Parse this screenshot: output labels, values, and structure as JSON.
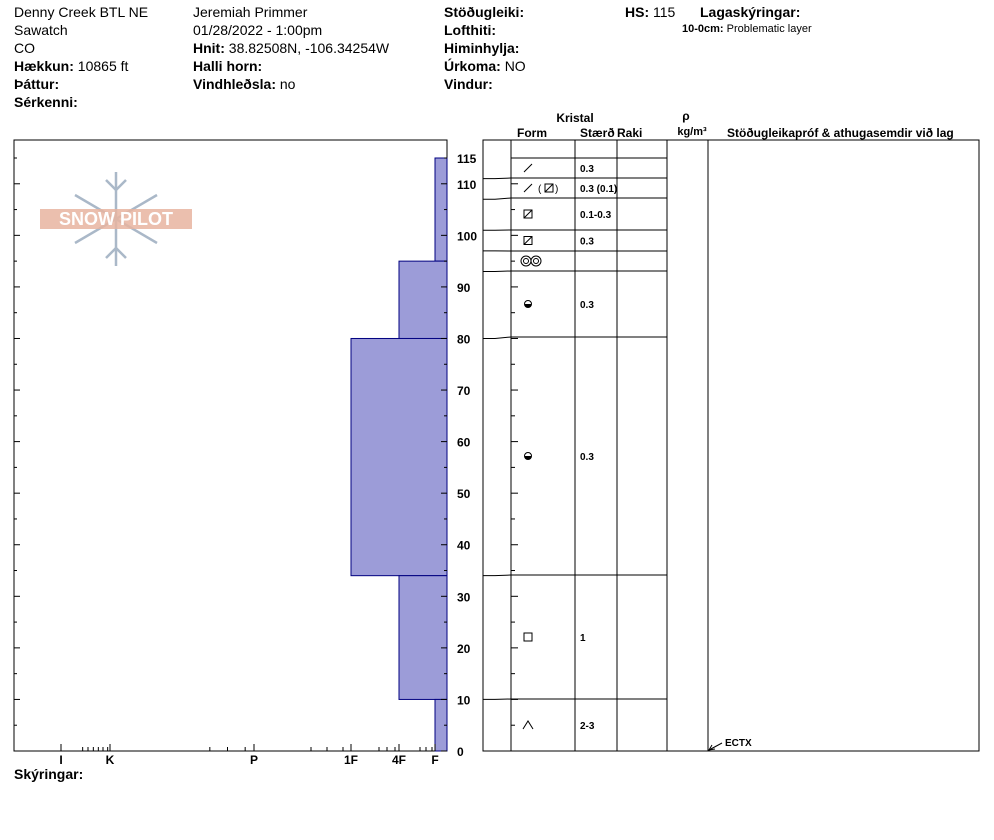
{
  "header": {
    "location": "Denny Creek BTL NE",
    "range": "Sawatch",
    "state": "CO",
    "elevation_label": "Hækkun:",
    "elevation_value": "10865 ft",
    "aspect_label": "Þáttur:",
    "specifics_label": "Sérkenni:",
    "observer": "Jeremiah Primmer",
    "datetime": "01/28/2022 - 1:00pm",
    "coords_label": "Hnit:",
    "coords_value": "38.82508N, -106.34254W",
    "slope_label": "Halli horn:",
    "wind_loading_label": "Vindhleðsla:",
    "wind_loading_value": "no",
    "stability_label": "Stöðugleiki:",
    "air_temp_label": "Lofthiti:",
    "sky_label": "Himinhylja:",
    "precip_label": "Úrkoma:",
    "precip_value": "NO",
    "wind_label": "Vindur:",
    "hs_label": "HS:",
    "hs_value": "115",
    "layer_notes_label": "Lagaskýringar:",
    "layer_note_depth": "10-0cm:",
    "layer_note_text": "Problematic layer"
  },
  "footer": {
    "notes_label": "Skýringar:"
  },
  "logo": {
    "text": "SNOW PILOT"
  },
  "columns": {
    "crystal": "Kristal",
    "form": "Form",
    "size": "Stærð",
    "moisture": "Raki",
    "density_symbol": "ρ",
    "density_unit": "kg/m³",
    "tests": "Stöðugleikapróf & athugasemdir við lag"
  },
  "colors": {
    "hardness_fill": "#9c9cd8",
    "hardness_stroke": "#000080",
    "logo": "#e8b4a0"
  },
  "chart_data": {
    "type": "bar",
    "orientation": "horizontal",
    "y_axis": {
      "label": "",
      "range": [
        0,
        115
      ],
      "ticks": [
        0,
        10,
        20,
        30,
        40,
        50,
        60,
        70,
        80,
        90,
        100,
        110,
        115
      ]
    },
    "x_axis": {
      "categories": [
        "I",
        "K",
        "P",
        "1F",
        "4F",
        "F"
      ],
      "reversed": true
    },
    "layers": [
      {
        "top": 115,
        "bottom": 95,
        "hardness": "F"
      },
      {
        "top": 95,
        "bottom": 80,
        "hardness": "4F"
      },
      {
        "top": 80,
        "bottom": 34,
        "hardness": "1F"
      },
      {
        "top": 34,
        "bottom": 10,
        "hardness": "4F"
      },
      {
        "top": 10,
        "bottom": 0,
        "hardness": "F"
      }
    ],
    "crystal_layers": [
      {
        "top": 115,
        "bottom": 111,
        "form": "decomposing",
        "size": "0.3"
      },
      {
        "top": 111,
        "bottom": 107,
        "form": "decomposing/faceted",
        "size": "0.3 (0.1)"
      },
      {
        "top": 107,
        "bottom": 101,
        "form": "faceted-rounded",
        "size": "0.1-0.3"
      },
      {
        "top": 101,
        "bottom": 97,
        "form": "faceted-rounded",
        "size": "0.3"
      },
      {
        "top": 97,
        "bottom": 93,
        "form": "melt-freeze",
        "size": ""
      },
      {
        "top": 93,
        "bottom": 80,
        "form": "rounded",
        "size": "0.3"
      },
      {
        "top": 80,
        "bottom": 34,
        "form": "rounded",
        "size": "0.3"
      },
      {
        "top": 34,
        "bottom": 10,
        "form": "faceted",
        "size": "1"
      },
      {
        "top": 10,
        "bottom": 0,
        "form": "depth-hoar",
        "size": "2-3"
      }
    ],
    "tests": [
      {
        "depth": 0,
        "label": "ECTX"
      }
    ]
  }
}
